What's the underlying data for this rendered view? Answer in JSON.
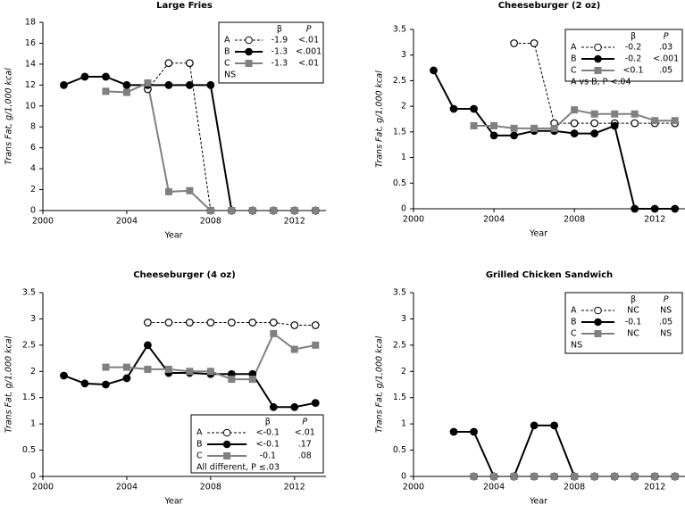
{
  "chart_data": [
    {
      "type": "line",
      "title": "Large Fries",
      "xlabel": "Year",
      "ylabel": "Trans Fat, g/1,000 kcal",
      "x": [
        2001,
        2002,
        2003,
        2004,
        2005,
        2006,
        2007,
        2008,
        2009,
        2010,
        2011,
        2012,
        2013
      ],
      "xlim": [
        2000,
        2013.5
      ],
      "xticks": [
        2000,
        2004,
        2008,
        2012
      ],
      "ylim": [
        0,
        18
      ],
      "yticks": [
        0,
        2,
        4,
        6,
        8,
        10,
        12,
        14,
        16,
        18
      ],
      "legend_position": "upper right",
      "series": [
        {
          "name": "A",
          "color": "#000000",
          "line_style": "dashed",
          "marker": "open-circle",
          "values": [
            null,
            null,
            null,
            null,
            11.6,
            14.1,
            14.1,
            0,
            0,
            0,
            0,
            0,
            0
          ]
        },
        {
          "name": "B",
          "color": "#000000",
          "line_style": "solid",
          "marker": "circle",
          "values": [
            12,
            12.8,
            12.8,
            12,
            12,
            12,
            12,
            12,
            0,
            0,
            0,
            0,
            0
          ]
        },
        {
          "name": "C",
          "color": "#808080",
          "line_style": "solid",
          "marker": "square",
          "values": [
            null,
            null,
            11.4,
            11.3,
            12.2,
            1.8,
            1.9,
            0,
            0,
            0,
            0,
            0,
            0
          ]
        }
      ],
      "legend": {
        "header": [
          "β",
          "P"
        ],
        "rows": [
          [
            "-1.9",
            "<.01"
          ],
          [
            "-1.3",
            "<.001"
          ],
          [
            "-1.3",
            "<.01"
          ]
        ],
        "note": "NS"
      }
    },
    {
      "type": "line",
      "title": "Cheeseburger (2 oz)",
      "xlabel": "Year",
      "ylabel": "Trans Fat, g/1,000 kcal",
      "x": [
        2001,
        2002,
        2003,
        2004,
        2005,
        2006,
        2007,
        2008,
        2009,
        2010,
        2011,
        2012,
        2013
      ],
      "xlim": [
        2000,
        2013.5
      ],
      "xticks": [
        2000,
        2004,
        2008,
        2012
      ],
      "ylim": [
        0,
        3.5
      ],
      "yticks": [
        0,
        0.5,
        1,
        1.5,
        2,
        2.5,
        3,
        3.5
      ],
      "legend_position": "upper right",
      "series": [
        {
          "name": "A",
          "color": "#000000",
          "line_style": "dashed",
          "marker": "open-circle",
          "values": [
            null,
            null,
            null,
            null,
            3.23,
            3.23,
            1.67,
            1.67,
            1.67,
            1.67,
            1.67,
            1.67,
            1.67
          ]
        },
        {
          "name": "B",
          "color": "#000000",
          "line_style": "solid",
          "marker": "circle",
          "values": [
            2.7,
            1.95,
            1.95,
            1.43,
            1.43,
            1.52,
            1.52,
            1.47,
            1.47,
            1.62,
            0,
            0,
            0
          ]
        },
        {
          "name": "C",
          "color": "#808080",
          "line_style": "solid",
          "marker": "square",
          "values": [
            null,
            null,
            1.62,
            1.62,
            1.57,
            1.57,
            1.57,
            1.93,
            1.85,
            1.85,
            1.85,
            1.72,
            1.72
          ]
        }
      ],
      "legend": {
        "header": [
          "β",
          "P"
        ],
        "rows": [
          [
            "-0.2",
            ".03"
          ],
          [
            "-0.2",
            "<.001"
          ],
          [
            "<0.1",
            ".05"
          ]
        ],
        "note": "A vs B, P <.04"
      }
    },
    {
      "type": "line",
      "title": "Cheeseburger (4 oz)",
      "xlabel": "Year",
      "ylabel": "Trans Fat, g/1,000 kcal",
      "x": [
        2001,
        2002,
        2003,
        2004,
        2005,
        2006,
        2007,
        2008,
        2009,
        2010,
        2011,
        2012,
        2013
      ],
      "xlim": [
        2000,
        2013.5
      ],
      "xticks": [
        2000,
        2004,
        2008,
        2012
      ],
      "ylim": [
        0,
        3.5
      ],
      "yticks": [
        0,
        0.5,
        1,
        1.5,
        2,
        2.5,
        3,
        3.5
      ],
      "legend_position": "lower right",
      "series": [
        {
          "name": "A",
          "color": "#000000",
          "line_style": "dashed",
          "marker": "open-circle",
          "values": [
            null,
            null,
            null,
            null,
            2.93,
            2.93,
            2.93,
            2.93,
            2.93,
            2.93,
            2.93,
            2.88,
            2.88
          ]
        },
        {
          "name": "B",
          "color": "#000000",
          "line_style": "solid",
          "marker": "circle",
          "values": [
            1.92,
            1.77,
            1.75,
            1.87,
            2.5,
            1.97,
            1.97,
            1.95,
            1.95,
            1.95,
            1.32,
            1.32,
            1.4
          ]
        },
        {
          "name": "C",
          "color": "#808080",
          "line_style": "solid",
          "marker": "square",
          "values": [
            null,
            null,
            2.08,
            2.08,
            2.04,
            2.04,
            2.0,
            2.0,
            1.85,
            1.85,
            2.72,
            2.42,
            2.5
          ]
        }
      ],
      "legend": {
        "header": [
          "β",
          "P"
        ],
        "rows": [
          [
            "<-0.1",
            "<.01"
          ],
          [
            "<-0.1",
            ".17"
          ],
          [
            "-0.1",
            ".08"
          ]
        ],
        "note": "All different, P ≤.03"
      }
    },
    {
      "type": "line",
      "title": "Grilled Chicken Sandwich",
      "xlabel": "Year",
      "ylabel": "Trans Fat, g/1,000 kcal",
      "x": [
        2001,
        2002,
        2003,
        2004,
        2005,
        2006,
        2007,
        2008,
        2009,
        2010,
        2011,
        2012,
        2013
      ],
      "xlim": [
        2000,
        2013.5
      ],
      "xticks": [
        2000,
        2004,
        2008,
        2012
      ],
      "ylim": [
        0,
        3.5
      ],
      "yticks": [
        0,
        0.5,
        1,
        1.5,
        2,
        2.5,
        3,
        3.5
      ],
      "legend_position": "upper right",
      "series": [
        {
          "name": "A",
          "color": "#000000",
          "line_style": "dashed",
          "marker": "open-circle",
          "values": [
            null,
            null,
            0,
            0,
            0,
            0,
            0,
            0,
            0,
            0,
            0,
            0,
            0
          ]
        },
        {
          "name": "B",
          "color": "#000000",
          "line_style": "solid",
          "marker": "circle",
          "values": [
            null,
            0.85,
            0.85,
            0,
            0,
            0.97,
            0.97,
            0,
            0,
            0,
            0,
            0,
            0
          ]
        },
        {
          "name": "C",
          "color": "#808080",
          "line_style": "solid",
          "marker": "square",
          "values": [
            null,
            null,
            0,
            0,
            0,
            0,
            0,
            0,
            0,
            0,
            0,
            0,
            0
          ]
        }
      ],
      "legend": {
        "header": [
          "β",
          "P"
        ],
        "rows": [
          [
            "NC",
            "NS"
          ],
          [
            "-0.1",
            ".05"
          ],
          [
            "NC",
            "NS"
          ]
        ],
        "note": "NS"
      }
    }
  ]
}
